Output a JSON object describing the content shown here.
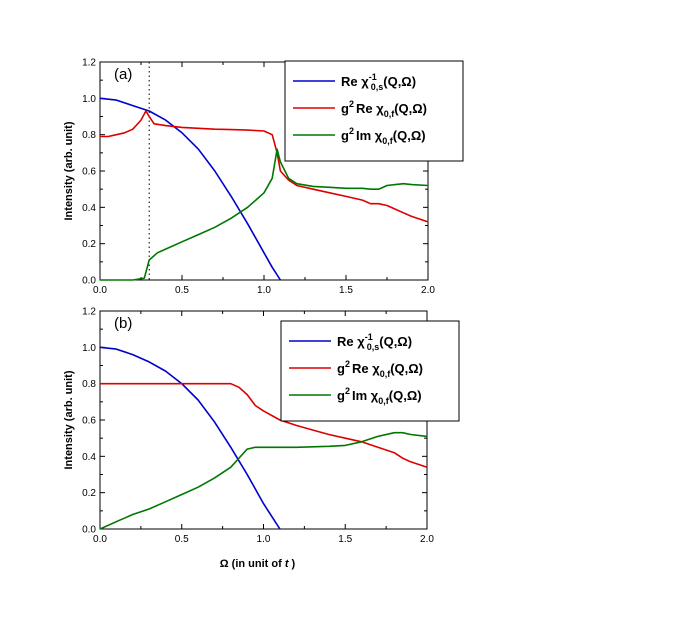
{
  "chart_data": [
    {
      "type": "line",
      "panel_label": "(a)",
      "ylabel": "Intensity (arb. unit)",
      "xlabel": "",
      "xlim": [
        0,
        2.0
      ],
      "ylim": [
        0,
        1.2
      ],
      "xticks": [
        "0.0",
        "0.5",
        "1.0",
        "1.5",
        "2.0"
      ],
      "yticks": [
        "0.0",
        "0.2",
        "0.4",
        "0.6",
        "0.8",
        "1.0",
        "1.2"
      ],
      "vline_x": 0.3,
      "series": [
        {
          "name": "Re χ⁻¹0,s(Q,Ω)",
          "legend": {
            "main": "Re  χ",
            "sup": "-1",
            "sub": "0,s",
            "tail": "(Q,Ω)"
          },
          "color": "#0000cc",
          "x": [
            0.0,
            0.1,
            0.2,
            0.3,
            0.4,
            0.5,
            0.6,
            0.7,
            0.8,
            0.9,
            1.0,
            1.05,
            1.1
          ],
          "y": [
            1.0,
            0.99,
            0.96,
            0.93,
            0.88,
            0.81,
            0.72,
            0.6,
            0.46,
            0.31,
            0.15,
            0.07,
            0.0
          ]
        },
        {
          "name": "g²Re χ0f(Q,Ω)",
          "legend": {
            "main": "g",
            "sup": "2",
            "main2": "Re  χ",
            "sub": "0,f",
            "tail": "(Q,Ω)"
          },
          "color": "#dd0000",
          "x": [
            0.0,
            0.05,
            0.1,
            0.15,
            0.2,
            0.25,
            0.28,
            0.3,
            0.33,
            0.4,
            0.5,
            0.6,
            0.7,
            0.8,
            0.9,
            1.0,
            1.05,
            1.08,
            1.1,
            1.15,
            1.2,
            1.3,
            1.4,
            1.5,
            1.6,
            1.65,
            1.7,
            1.75,
            1.8,
            1.85,
            1.9,
            2.0
          ],
          "y": [
            0.79,
            0.79,
            0.8,
            0.81,
            0.83,
            0.88,
            0.93,
            0.9,
            0.86,
            0.85,
            0.84,
            0.835,
            0.83,
            0.828,
            0.825,
            0.82,
            0.8,
            0.7,
            0.6,
            0.55,
            0.52,
            0.5,
            0.48,
            0.46,
            0.44,
            0.42,
            0.42,
            0.41,
            0.39,
            0.37,
            0.35,
            0.32
          ]
        },
        {
          "name": "g²Im χ0f(Q,Ω)",
          "legend": {
            "main": "g",
            "sup": "2",
            "main2": "Im  χ",
            "sub": "0,f",
            "tail": "(Q,Ω)"
          },
          "color": "#007700",
          "x": [
            0.0,
            0.1,
            0.2,
            0.27,
            0.3,
            0.35,
            0.4,
            0.5,
            0.6,
            0.7,
            0.8,
            0.9,
            0.95,
            1.0,
            1.05,
            1.08,
            1.1,
            1.15,
            1.2,
            1.3,
            1.4,
            1.5,
            1.6,
            1.65,
            1.7,
            1.75,
            1.8,
            1.85,
            1.9,
            2.0
          ],
          "y": [
            0.0,
            0.0,
            0.0,
            0.01,
            0.11,
            0.15,
            0.17,
            0.21,
            0.25,
            0.29,
            0.34,
            0.4,
            0.44,
            0.48,
            0.56,
            0.72,
            0.65,
            0.56,
            0.53,
            0.515,
            0.51,
            0.505,
            0.505,
            0.5,
            0.5,
            0.52,
            0.525,
            0.53,
            0.525,
            0.52
          ]
        }
      ]
    },
    {
      "type": "line",
      "panel_label": "(b)",
      "ylabel": "Intensity (arb. unit)",
      "xlabel_main": "Ω (in unit of ",
      "xlabel_italic": "t",
      "xlabel_close": " )",
      "xlim": [
        0,
        2.0
      ],
      "ylim": [
        0,
        1.2
      ],
      "xticks": [
        "0.0",
        "0.5",
        "1.0",
        "1.5",
        "2.0"
      ],
      "yticks": [
        "0.0",
        "0.2",
        "0.4",
        "0.6",
        "0.8",
        "1.0",
        "1.2"
      ],
      "series": [
        {
          "name": "Re χ⁻¹0,s(Q,Ω)",
          "legend": {
            "main": "Re  χ",
            "sup": "-1",
            "sub": "0,s",
            "tail": "(Q,Ω)"
          },
          "color": "#0000cc",
          "x": [
            0.0,
            0.1,
            0.2,
            0.3,
            0.4,
            0.5,
            0.6,
            0.7,
            0.8,
            0.9,
            1.0,
            1.05,
            1.1
          ],
          "y": [
            1.0,
            0.99,
            0.96,
            0.92,
            0.87,
            0.8,
            0.71,
            0.59,
            0.45,
            0.3,
            0.14,
            0.07,
            0.0
          ]
        },
        {
          "name": "g²Re χ0f(Q,Ω)",
          "legend": {
            "main": "g",
            "sup": "2",
            "main2": "Re  χ",
            "sub": "0,f",
            "tail": "(Q,Ω)"
          },
          "color": "#dd0000",
          "x": [
            0.0,
            0.2,
            0.4,
            0.6,
            0.8,
            0.85,
            0.9,
            0.95,
            1.0,
            1.1,
            1.2,
            1.3,
            1.4,
            1.5,
            1.6,
            1.7,
            1.8,
            1.85,
            1.9,
            2.0
          ],
          "y": [
            0.8,
            0.8,
            0.8,
            0.8,
            0.8,
            0.78,
            0.74,
            0.68,
            0.65,
            0.6,
            0.57,
            0.545,
            0.52,
            0.5,
            0.48,
            0.45,
            0.42,
            0.39,
            0.37,
            0.34
          ]
        },
        {
          "name": "g²Im χ0f(Q,Ω)",
          "legend": {
            "main": "g",
            "sup": "2",
            "main2": "Im  χ",
            "sub": "0,f",
            "tail": "(Q,Ω)"
          },
          "color": "#007700",
          "x": [
            0.0,
            0.1,
            0.2,
            0.3,
            0.4,
            0.5,
            0.6,
            0.7,
            0.8,
            0.85,
            0.9,
            0.95,
            1.0,
            1.2,
            1.4,
            1.5,
            1.6,
            1.7,
            1.8,
            1.85,
            1.9,
            2.0
          ],
          "y": [
            0.0,
            0.04,
            0.08,
            0.11,
            0.15,
            0.19,
            0.23,
            0.28,
            0.34,
            0.39,
            0.44,
            0.45,
            0.45,
            0.45,
            0.455,
            0.46,
            0.48,
            0.51,
            0.53,
            0.53,
            0.52,
            0.51
          ]
        }
      ]
    }
  ]
}
